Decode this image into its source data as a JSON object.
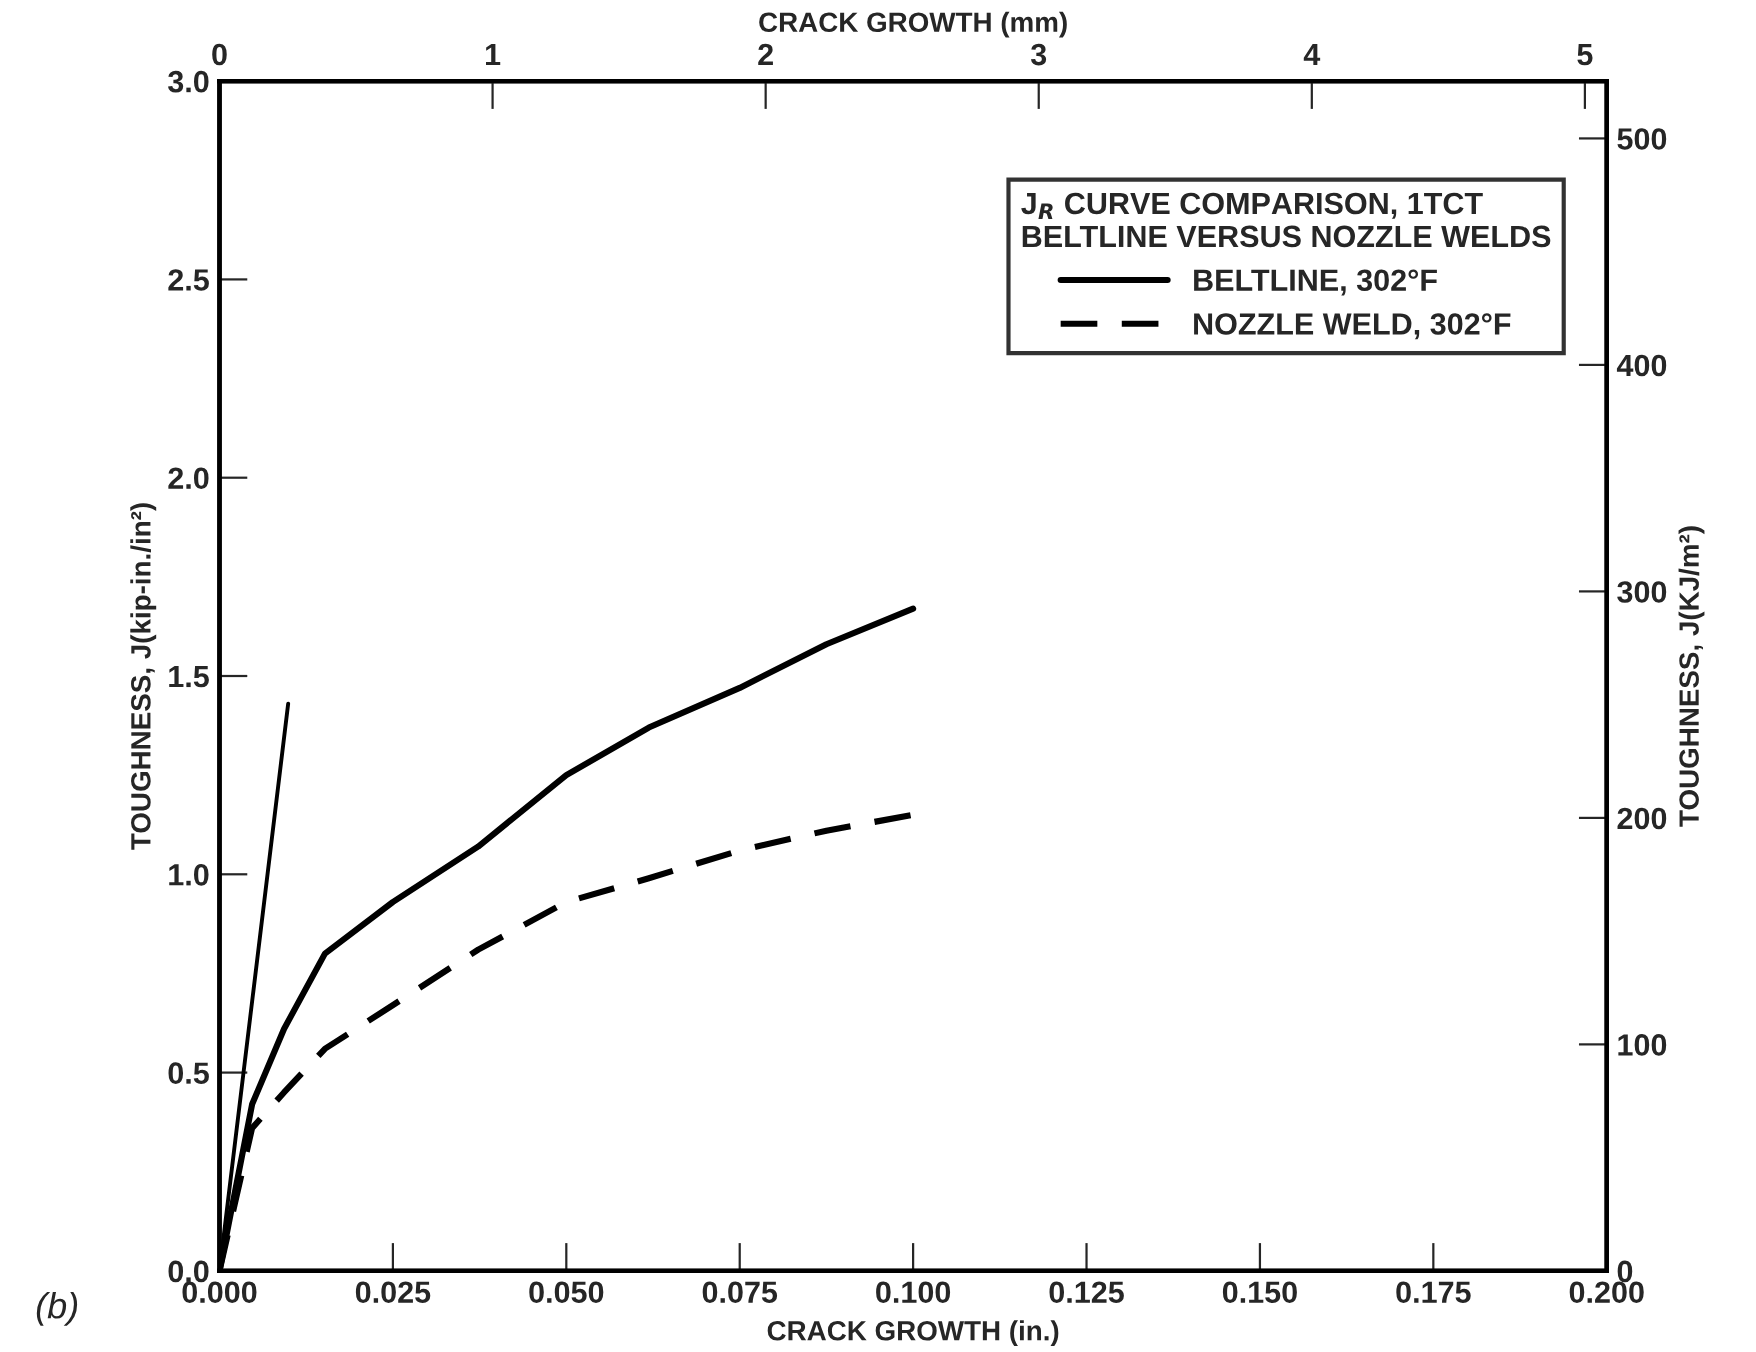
{
  "chart_data": {
    "type": "line",
    "xlabel": "CRACK GROWTH (in.)",
    "x2label": "CRACK GROWTH (mm)",
    "ylabel": "TOUGHNESS, J(kip-in./in²)",
    "y2label": "TOUGHNESS, J(KJ/m²)",
    "legend_title": "J$_{R}$ CURVE COMPARISON, 1TCT\nBELTLINE VERSUS NOZZLE WELDS",
    "annotations": [
      "(b)"
    ],
    "xlim": [
      0,
      0.2
    ],
    "xticks": [
      {
        "value": 0,
        "label": "0.000"
      },
      {
        "value": 0.025,
        "label": "0.025"
      },
      {
        "value": 0.05,
        "label": "0.050"
      },
      {
        "value": 0.075,
        "label": "0.075"
      },
      {
        "value": 0.1,
        "label": "0.100"
      },
      {
        "value": 0.125,
        "label": "0.125"
      },
      {
        "value": 0.15,
        "label": "0.150"
      },
      {
        "value": 0.175,
        "label": "0.175"
      },
      {
        "value": 0.2,
        "label": "0.200"
      }
    ],
    "ylim": [
      0,
      3.0
    ],
    "yticks": [
      {
        "value": 0,
        "label": "0.0"
      },
      0.5,
      {
        "value": 1,
        "label": "1.0"
      },
      1.5,
      {
        "value": 2,
        "label": "2.0"
      },
      2.5,
      {
        "value": 3,
        "label": "3.0"
      }
    ],
    "x2lim": [
      0,
      5.08
    ],
    "x2ticks": [
      0,
      1,
      2,
      3,
      4,
      5
    ],
    "y2lim": [
      0,
      525.3
    ],
    "y2ticks": [
      0,
      100,
      200,
      300,
      400,
      500
    ],
    "grid": false,
    "legend": "top right",
    "marker": "none",
    "series": [
      {
        "name": "BELTLINE, 302°F",
        "color": "#000000",
        "line_style": "solid",
        "x": [
          0,
          0.0047,
          0.0093,
          0.0152,
          0.025,
          0.0373,
          0.05,
          0.0619,
          0.075,
          0.0875,
          0.1
        ],
        "values": [
          0,
          0.42,
          0.61,
          0.8,
          0.93,
          1.07,
          1.25,
          1.37,
          1.47,
          1.58,
          1.67
        ]
      },
      {
        "name": "NOZZLE WELD, 302°F",
        "color": "#000000",
        "line_style": "dashed",
        "x": [
          0,
          0.0047,
          0.0093,
          0.0152,
          0.025,
          0.0373,
          0.05,
          0.0619,
          0.075,
          0.0875,
          0.1
        ],
        "values": [
          0,
          0.36,
          0.45,
          0.56,
          0.67,
          0.81,
          0.93,
          0.99,
          1.06,
          1.11,
          1.15
        ]
      },
      {
        "color": "#000000",
        "line_style": "solid",
        "x": [
          0,
          0.0099
        ],
        "values": [
          0,
          1.43
        ]
      }
    ]
  }
}
